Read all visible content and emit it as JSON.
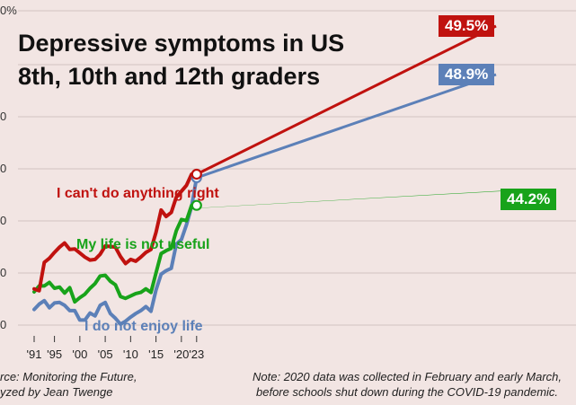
{
  "title_line1": "Depressive symptoms in US",
  "title_line2": "8th, 10th and 12th graders",
  "footer": {
    "source_line1": "rce: Monitoring the Future,",
    "source_line2": "yzed by Jean Twenge",
    "note_line1": "Note: 2020 data was collected in February and early March,",
    "note_line2": "before schools shut down during the COVID-19 pandemic."
  },
  "chart_data": {
    "type": "line",
    "x_ticks": [
      1991,
      1995,
      2000,
      2005,
      2010,
      2015,
      2020,
      2023
    ],
    "x_tick_labels": [
      "'91",
      "'95",
      "'00",
      "'05",
      "'10",
      "'15",
      "'20",
      "'23"
    ],
    "y_tick_labels": [
      "0%",
      "0",
      "0",
      "0",
      "0",
      "0"
    ],
    "grid": true,
    "colors": {
      "cant_do": "#c0120f",
      "not_useful": "#18a31a",
      "not_enjoy": "#5c80b8"
    },
    "series": [
      {
        "name": "I can't do anything right",
        "key": "cant_do",
        "x": [
          1991,
          1992,
          1993,
          1994,
          1995,
          1996,
          1997,
          1998,
          1999,
          2000,
          2001,
          2002,
          2003,
          2004,
          2005,
          2006,
          2007,
          2008,
          2009,
          2010,
          2011,
          2012,
          2013,
          2014,
          2015,
          2016,
          2017,
          2018,
          2019,
          2020,
          2021,
          2022,
          2023
        ],
        "y": [
          30.0,
          29.7,
          34.5,
          35.2,
          36.2,
          37.1,
          37.8,
          36.7,
          36.8,
          36.1,
          35.4,
          34.9,
          35.0,
          35.9,
          37.3,
          37.2,
          37.1,
          35.5,
          34.3,
          35.0,
          34.7,
          35.4,
          36.2,
          36.7,
          39.6,
          43.4,
          42.3,
          43.0,
          45.6,
          46.6,
          47.6,
          49.5,
          49.5
        ],
        "end_label": "49.5%"
      },
      {
        "name": "My life is not useful",
        "key": "not_useful",
        "x": [
          1991,
          1992,
          1993,
          1994,
          1995,
          1996,
          1997,
          1998,
          1999,
          2000,
          2001,
          2002,
          2003,
          2004,
          2005,
          2006,
          2007,
          2008,
          2009,
          2010,
          2011,
          2012,
          2013,
          2014,
          2015,
          2016,
          2017,
          2018,
          2019,
          2020,
          2021,
          2022,
          2023
        ],
        "y": [
          29.5,
          30.5,
          30.5,
          31.1,
          30.1,
          30.3,
          29.3,
          30.2,
          27.8,
          28.5,
          29.1,
          30.1,
          30.9,
          32.2,
          32.3,
          31.3,
          30.7,
          28.7,
          28.4,
          28.8,
          29.2,
          29.4,
          30.0,
          29.4,
          32.7,
          36.0,
          36.5,
          36.9,
          39.9,
          41.8,
          41.6,
          44.2,
          44.2
        ],
        "end_label": "44.2%"
      },
      {
        "name": "I do not enjoy life",
        "key": "not_enjoy",
        "x": [
          1991,
          1992,
          1993,
          1994,
          1995,
          1996,
          1997,
          1998,
          1999,
          2000,
          2001,
          2002,
          2003,
          2004,
          2005,
          2006,
          2007,
          2008,
          2009,
          2010,
          2011,
          2012,
          2013,
          2014,
          2015,
          2016,
          2017,
          2018,
          2019,
          2020,
          2021,
          2022,
          2023
        ],
        "y": [
          26.5,
          27.4,
          28.0,
          26.8,
          27.6,
          27.7,
          27.2,
          26.3,
          26.3,
          24.7,
          24.7,
          25.9,
          25.4,
          27.2,
          27.7,
          25.8,
          25.0,
          24.0,
          24.5,
          25.2,
          25.8,
          26.3,
          27.0,
          26.2,
          29.8,
          32.5,
          33.1,
          33.5,
          37.6,
          38.4,
          40.9,
          44.0,
          48.9
        ],
        "end_label": "48.9%"
      }
    ]
  }
}
